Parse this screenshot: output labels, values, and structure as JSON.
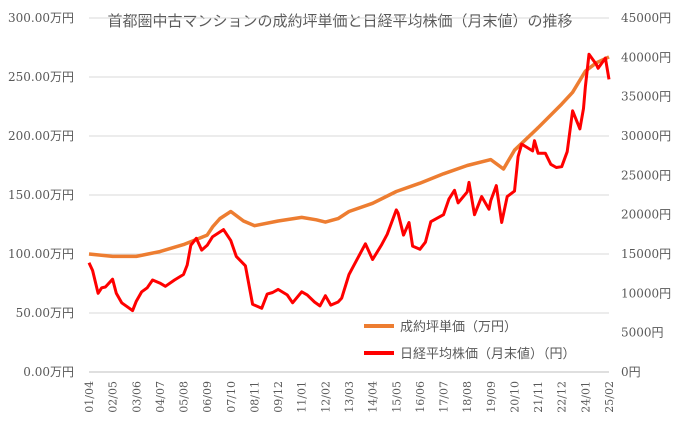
{
  "chart_data": {
    "type": "line",
    "title": "首都圏中古マンションの成約坪単価と日経平均株価（月末値）の推移",
    "x_tick_labels": [
      "01/04",
      "02/05",
      "03/06",
      "04/07",
      "05/08",
      "06/09",
      "07/10",
      "08/11",
      "09/12",
      "11/01",
      "12/02",
      "13/03",
      "14/04",
      "15/05",
      "16/06",
      "17/07",
      "18/08",
      "19/09",
      "20/10",
      "21/11",
      "22/12",
      "24/01",
      "25/02"
    ],
    "y_left": {
      "ticks": [
        "0.00万円",
        "50.00万円",
        "100.00万円",
        "150.00万円",
        "200.00万円",
        "250.00万円",
        "300.00万円"
      ],
      "ylim": [
        0,
        300
      ]
    },
    "y_right": {
      "ticks": [
        "0円",
        "5000円",
        "10000円",
        "15000円",
        "20000円",
        "25000円",
        "30000円",
        "35000円",
        "40000円",
        "45000円"
      ],
      "ylim": [
        0,
        45000
      ]
    },
    "grid": "horizontal",
    "legend_position": "bottom-right",
    "series": [
      {
        "name": "成約坪単価（万円）",
        "axis": "left",
        "color": "#ED7D31",
        "points": [
          [
            "01/04",
            100
          ],
          [
            "02/05",
            98
          ],
          [
            "03/06",
            98
          ],
          [
            "04/07",
            102
          ],
          [
            "05/08",
            108
          ],
          [
            "06/09",
            116
          ],
          [
            "06/12",
            123
          ],
          [
            "07/04",
            130
          ],
          [
            "07/10",
            136
          ],
          [
            "08/05",
            128
          ],
          [
            "08/11",
            124
          ],
          [
            "09/12",
            128
          ],
          [
            "11/01",
            131
          ],
          [
            "11/09",
            129
          ],
          [
            "12/02",
            127
          ],
          [
            "12/09",
            130
          ],
          [
            "13/03",
            136
          ],
          [
            "14/04",
            143
          ],
          [
            "15/05",
            153
          ],
          [
            "16/06",
            160
          ],
          [
            "17/07",
            168
          ],
          [
            "18/08",
            175
          ],
          [
            "19/09",
            180
          ],
          [
            "20/04",
            172
          ],
          [
            "20/10",
            188
          ],
          [
            "21/11",
            207
          ],
          [
            "22/12",
            227
          ],
          [
            "23/06",
            237
          ],
          [
            "24/01",
            255
          ],
          [
            "24/07",
            262
          ],
          [
            "25/02",
            267
          ]
        ]
      },
      {
        "name": "日経平均株価（月末値）（円）",
        "axis": "right",
        "color": "#FF0000",
        "points": [
          [
            "01/04",
            13900
          ],
          [
            "01/06",
            12900
          ],
          [
            "01/09",
            10000
          ],
          [
            "01/11",
            10700
          ],
          [
            "02/01",
            10800
          ],
          [
            "02/05",
            11800
          ],
          [
            "02/07",
            10000
          ],
          [
            "02/10",
            8800
          ],
          [
            "03/04",
            7800
          ],
          [
            "03/06",
            9000
          ],
          [
            "03/09",
            10200
          ],
          [
            "03/12",
            10700
          ],
          [
            "04/03",
            11700
          ],
          [
            "04/07",
            11300
          ],
          [
            "04/10",
            10900
          ],
          [
            "05/03",
            11700
          ],
          [
            "05/08",
            12400
          ],
          [
            "05/10",
            13600
          ],
          [
            "05/12",
            16100
          ],
          [
            "06/03",
            17000
          ],
          [
            "06/06",
            15500
          ],
          [
            "06/09",
            16100
          ],
          [
            "06/12",
            17200
          ],
          [
            "07/06",
            18100
          ],
          [
            "07/10",
            16700
          ],
          [
            "08/01",
            14700
          ],
          [
            "08/06",
            13500
          ],
          [
            "08/10",
            8600
          ],
          [
            "08/11",
            8500
          ],
          [
            "09/03",
            8100
          ],
          [
            "09/06",
            9900
          ],
          [
            "09/09",
            10100
          ],
          [
            "09/12",
            10500
          ],
          [
            "10/05",
            9800
          ],
          [
            "10/08",
            8800
          ],
          [
            "11/01",
            10200
          ],
          [
            "11/04",
            9800
          ],
          [
            "11/08",
            8900
          ],
          [
            "11/11",
            8400
          ],
          [
            "12/02",
            9700
          ],
          [
            "12/05",
            8500
          ],
          [
            "12/09",
            8900
          ],
          [
            "12/11",
            9400
          ],
          [
            "13/03",
            12400
          ],
          [
            "13/06",
            13700
          ],
          [
            "13/12",
            16300
          ],
          [
            "14/04",
            14300
          ],
          [
            "14/09",
            16200
          ],
          [
            "14/12",
            17500
          ],
          [
            "15/05",
            20600
          ],
          [
            "15/06",
            20200
          ],
          [
            "15/09",
            17400
          ],
          [
            "15/12",
            19000
          ],
          [
            "16/02",
            16000
          ],
          [
            "16/06",
            15600
          ],
          [
            "16/09",
            16500
          ],
          [
            "16/12",
            19100
          ],
          [
            "17/07",
            20000
          ],
          [
            "17/10",
            22000
          ],
          [
            "18/01",
            23100
          ],
          [
            "18/03",
            21500
          ],
          [
            "18/08",
            22900
          ],
          [
            "18/09",
            24100
          ],
          [
            "18/12",
            20000
          ],
          [
            "19/04",
            22300
          ],
          [
            "19/08",
            20700
          ],
          [
            "19/09",
            21800
          ],
          [
            "19/12",
            23700
          ],
          [
            "20/03",
            19000
          ],
          [
            "20/06",
            22300
          ],
          [
            "20/10",
            23000
          ],
          [
            "20/12",
            27400
          ],
          [
            "21/02",
            28966
          ],
          [
            "21/08",
            28100
          ],
          [
            "21/09",
            29400
          ],
          [
            "21/11",
            27800
          ],
          [
            "22/03",
            27800
          ],
          [
            "22/06",
            26400
          ],
          [
            "22/09",
            26000
          ],
          [
            "22/12",
            26100
          ],
          [
            "23/03",
            28000
          ],
          [
            "23/06",
            33200
          ],
          [
            "23/10",
            30900
          ],
          [
            "23/12",
            33500
          ],
          [
            "24/01",
            36300
          ],
          [
            "24/03",
            40400
          ],
          [
            "24/07",
            39100
          ],
          [
            "24/08",
            38600
          ],
          [
            "24/12",
            39900
          ],
          [
            "25/02",
            37200
          ]
        ]
      }
    ]
  }
}
